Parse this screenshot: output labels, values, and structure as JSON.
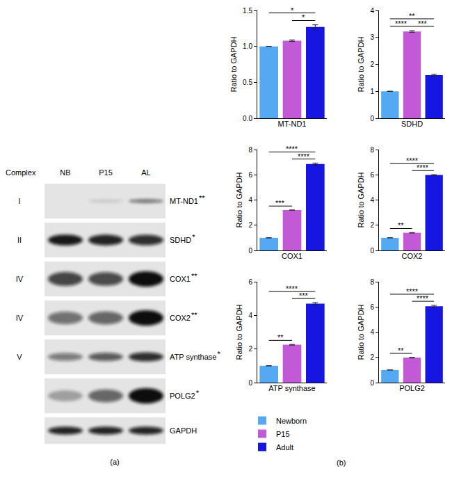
{
  "panel_labels": {
    "a": "(a)",
    "b": "(b)"
  },
  "blot": {
    "header": "Complex",
    "lanes": [
      "NB",
      "P15",
      "AL"
    ],
    "rows": [
      {
        "complex": "I",
        "protein": "MT-ND1",
        "significance": "**"
      },
      {
        "complex": "II",
        "protein": "SDHD",
        "significance": "*"
      },
      {
        "complex": "IV",
        "protein": "COX1",
        "significance": "**"
      },
      {
        "complex": "IV",
        "protein": "COX2",
        "significance": "**"
      },
      {
        "complex": "V",
        "protein": "ATP synthase",
        "significance": "*"
      },
      {
        "protein": "POLG2",
        "significance": "*"
      },
      {
        "protein": "GAPDH"
      }
    ]
  },
  "chart_data": [
    {
      "type": "bar",
      "categories": [
        "Newborn",
        "P15",
        "Adult"
      ],
      "values": [
        1.0,
        1.08,
        1.27
      ],
      "errors": [
        0,
        0.01,
        0.03
      ],
      "colors": [
        "#55a8f2",
        "#c25ad8",
        "#1616e0"
      ],
      "x_label": "MT-ND1",
      "y_label": "Ratio to GAPDH",
      "ylim": [
        0,
        1.5
      ],
      "yticks": [
        {
          "value": 0,
          "label": "0.0"
        },
        {
          "value": 0.5,
          "label": "0.5"
        },
        {
          "value": 1,
          "label": "1.0"
        },
        {
          "value": 1.5,
          "label": "1.5"
        }
      ],
      "tick_labels": "y",
      "grid": false,
      "legend": "bottom",
      "comparisons": [
        {
          "from": "Newborn",
          "to": "Adult",
          "label": "*"
        },
        {
          "from": "P15",
          "to": "Adult",
          "label": "*"
        }
      ]
    },
    {
      "type": "bar",
      "categories": [
        "Newborn",
        "P15",
        "Adult"
      ],
      "values": [
        1.0,
        3.22,
        1.6
      ],
      "errors": [
        0,
        0.03,
        0.03
      ],
      "colors": [
        "#55a8f2",
        "#c25ad8",
        "#1616e0"
      ],
      "x_label": "SDHD",
      "y_label": "Ratio to GAPDH",
      "ylim": [
        0,
        4
      ],
      "yticks": [
        0,
        1,
        2,
        3,
        4
      ],
      "tick_labels": "y",
      "grid": false,
      "comparisons": [
        {
          "from": "Newborn",
          "to": "Adult",
          "label": "**"
        },
        {
          "from": "Newborn",
          "to": "P15",
          "label": "****"
        },
        {
          "from": "P15",
          "to": "Adult",
          "label": "***"
        }
      ]
    },
    {
      "type": "bar",
      "categories": [
        "Newborn",
        "P15",
        "Adult"
      ],
      "values": [
        1.0,
        3.2,
        6.85
      ],
      "errors": [
        0,
        0,
        0.08
      ],
      "colors": [
        "#55a8f2",
        "#c25ad8",
        "#1616e0"
      ],
      "x_label": "COX1",
      "y_label": "Ratio to GAPDH",
      "ylim": [
        0,
        8
      ],
      "yticks": [
        0,
        2,
        4,
        6,
        8
      ],
      "tick_labels": "y",
      "grid": false,
      "comparisons": [
        {
          "from": "Newborn",
          "to": "Adult",
          "label": "****"
        },
        {
          "from": "Newborn",
          "to": "P15",
          "label": "***"
        },
        {
          "from": "P15",
          "to": "Adult",
          "label": "****"
        }
      ]
    },
    {
      "type": "bar",
      "categories": [
        "Newborn",
        "P15",
        "Adult"
      ],
      "values": [
        1.0,
        1.4,
        5.98
      ],
      "errors": [
        0,
        0.02,
        0.03
      ],
      "colors": [
        "#55a8f2",
        "#c25ad8",
        "#1616e0"
      ],
      "x_label": "COX2",
      "y_label": "Ratio to GAPDH",
      "ylim": [
        0,
        8
      ],
      "yticks": [
        0,
        2,
        4,
        6,
        8
      ],
      "tick_labels": "y",
      "grid": false,
      "comparisons": [
        {
          "from": "Newborn",
          "to": "Adult",
          "label": "****"
        },
        {
          "from": "Newborn",
          "to": "P15",
          "label": "**"
        },
        {
          "from": "P15",
          "to": "Adult",
          "label": "****"
        }
      ]
    },
    {
      "type": "bar",
      "categories": [
        "Newborn",
        "P15",
        "Adult"
      ],
      "values": [
        1.0,
        2.25,
        4.7
      ],
      "errors": [
        0,
        0.02,
        0.06
      ],
      "colors": [
        "#55a8f2",
        "#c25ad8",
        "#1616e0"
      ],
      "x_label": "ATP synthase",
      "y_label": "Ratio to GAPDH",
      "ylim": [
        0,
        6
      ],
      "yticks": [
        0,
        2,
        4,
        6
      ],
      "tick_labels": "y",
      "grid": false,
      "comparisons": [
        {
          "from": "Newborn",
          "to": "Adult",
          "label": "****"
        },
        {
          "from": "Newborn",
          "to": "P15",
          "label": "**"
        },
        {
          "from": "P15",
          "to": "Adult",
          "label": "***"
        }
      ]
    },
    {
      "type": "bar",
      "categories": [
        "Newborn",
        "P15",
        "Adult"
      ],
      "values": [
        1.0,
        1.98,
        6.05
      ],
      "errors": [
        0,
        0.02,
        0.08
      ],
      "colors": [
        "#55a8f2",
        "#c25ad8",
        "#1616e0"
      ],
      "x_label": "POLG2",
      "y_label": "Ratio to GAPDH",
      "ylim": [
        0,
        8
      ],
      "yticks": [
        0,
        2,
        4,
        6,
        8
      ],
      "tick_labels": "y",
      "grid": false,
      "comparisons": [
        {
          "from": "Newborn",
          "to": "Adult",
          "label": "****"
        },
        {
          "from": "Newborn",
          "to": "P15",
          "label": "**"
        },
        {
          "from": "P15",
          "to": "Adult",
          "label": "****"
        }
      ]
    }
  ]
}
